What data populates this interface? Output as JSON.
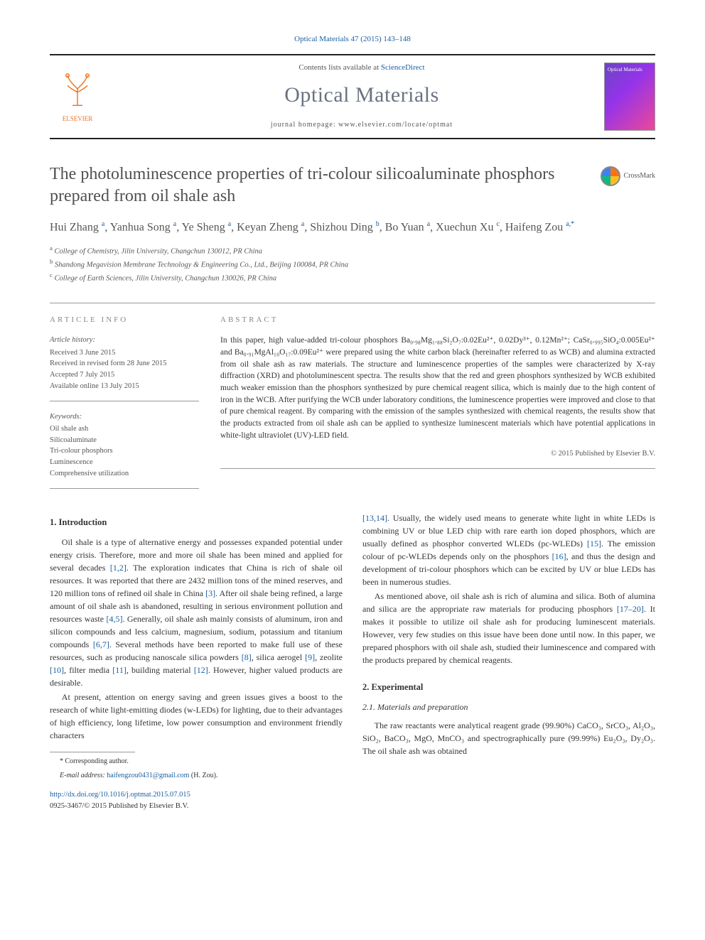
{
  "citation": "Optical Materials 47 (2015) 143–148",
  "contents_line_prefix": "Contents lists available at ",
  "contents_link": "ScienceDirect",
  "journal_name": "Optical Materials",
  "homepage_label": "journal homepage: www.elsevier.com/locate/optmat",
  "elsevier_label": "ELSEVIER",
  "cover_label": "Optical Materials",
  "crossmark_label": "CrossMark",
  "title": "The photoluminescence properties of tri-colour silicoaluminate phosphors prepared from oil shale ash",
  "authors_html": "Hui Zhang <sup>a</sup>, Yanhua Song <sup>a</sup>, Ye Sheng <sup>a</sup>, Keyan Zheng <sup>a</sup>, Shizhou Ding <sup>b</sup>, Bo Yuan <sup>a</sup>, Xuechun Xu <sup>c</sup>, Haifeng Zou <sup>a,*</sup>",
  "affiliations": [
    {
      "sup": "a",
      "text": "College of Chemistry, Jilin University, Changchun 130012, PR China"
    },
    {
      "sup": "b",
      "text": "Shandong Megavision Membrane Technology & Engineering Co., Ltd., Beijing 100084, PR China"
    },
    {
      "sup": "c",
      "text": "College of Earth Sciences, Jilin University, Changchun 130026, PR China"
    }
  ],
  "info_head": "ARTICLE INFO",
  "abstract_head": "ABSTRACT",
  "history_head": "Article history:",
  "history": [
    "Received 3 June 2015",
    "Received in revised form 28 June 2015",
    "Accepted 7 July 2015",
    "Available online 13 July 2015"
  ],
  "keywords_head": "Keywords:",
  "keywords": [
    "Oil shale ash",
    "Silicoaluminate",
    "Tri-colour phosphors",
    "Luminescence",
    "Comprehensive utilization"
  ],
  "abstract": "In this paper, high value-added tri-colour phosphors Ba₀.₉₈Mg₁.₈₈Si₂O₇:0.02Eu²⁺, 0.02Dy³⁺, 0.12Mn²⁺; CaSr₀.₉₉₅SiO₄:0.005Eu²⁺ and Ba₀.₉₁MgAl₁₀O₁₇:0.09Eu²⁺ were prepared using the white carbon black (hereinafter referred to as WCB) and alumina extracted from oil shale ash as raw materials. The structure and luminescence properties of the samples were characterized by X-ray diffraction (XRD) and photoluminescent spectra. The results show that the red and green phosphors synthesized by WCB exhibited much weaker emission than the phosphors synthesized by pure chemical reagent silica, which is mainly due to the high content of iron in the WCB. After purifying the WCB under laboratory conditions, the luminescence properties were improved and close to that of pure chemical reagent. By comparing with the emission of the samples synthesized with chemical reagents, the results show that the products extracted from oil shale ash can be applied to synthesize luminescent materials which have potential applications in white-light ultraviolet (UV)-LED field.",
  "copyright_line": "© 2015 Published by Elsevier B.V.",
  "sections": {
    "intro_head": "1. Introduction",
    "intro_p1": "Oil shale is a type of alternative energy and possesses expanded potential under energy crisis. Therefore, more and more oil shale has been mined and applied for several decades [1,2]. The exploration indicates that China is rich of shale oil resources. It was reported that there are 2432 million tons of the mined reserves, and 120 million tons of refined oil shale in China [3]. After oil shale being refined, a large amount of oil shale ash is abandoned, resulting in serious environment pollution and resources waste [4,5]. Generally, oil shale ash mainly consists of aluminum, iron and silicon compounds and less calcium, magnesium, sodium, potassium and titanium compounds [6,7]. Several methods have been reported to make full use of these resources, such as producing nanoscale silica powders [8], silica aerogel [9], zeolite [10], filter media [11], building material [12]. However, higher valued products are desirable.",
    "intro_p2": "At present, attention on energy saving and green issues gives a boost to the research of white light-emitting diodes (w-LEDs) for lighting, due to their advantages of high efficiency, long lifetime, low power consumption and environment friendly characters",
    "intro_p3": "[13,14]. Usually, the widely used means to generate white light in white LEDs is combining UV or blue LED chip with rare earth ion doped phosphors, which are usually defined as phosphor converted WLEDs (pc-WLEDs) [15]. The emission colour of pc-WLEDs depends only on the phosphors [16], and thus the design and development of tri-colour phosphors which can be excited by UV or blue LEDs has been in numerous studies.",
    "intro_p4": "As mentioned above, oil shale ash is rich of alumina and silica. Both of alumina and silica are the appropriate raw materials for producing phosphors [17–20]. It makes it possible to utilize oil shale ash for producing luminescent materials. However, very few studies on this issue have been done until now. In this paper, we prepared phosphors with oil shale ash, studied their luminescence and compared with the products prepared by chemical reagents.",
    "exp_head": "2. Experimental",
    "exp_sub": "2.1. Materials and preparation",
    "exp_p1": "The raw reactants were analytical reagent grade (99.90%) CaCO₃, SrCO₃, Al₂O₃, SiO₂, BaCO₃, MgO, MnCO₃ and spectrographically pure (99.99%) Eu₂O₃, Dy₂O₃. The oil shale ash was obtained"
  },
  "footnote": {
    "corresp": "* Corresponding author.",
    "email_label": "E-mail address: ",
    "email": "haifengzou0431@gmail.com",
    "email_suffix": " (H. Zou)."
  },
  "doi": {
    "url": "http://dx.doi.org/10.1016/j.optmat.2015.07.015",
    "issn_line": "0925-3467/© 2015 Published by Elsevier B.V."
  },
  "colors": {
    "link": "#1a5fa0",
    "elsevier": "#e9711c",
    "text_muted": "#555555",
    "rule": "#999999"
  }
}
